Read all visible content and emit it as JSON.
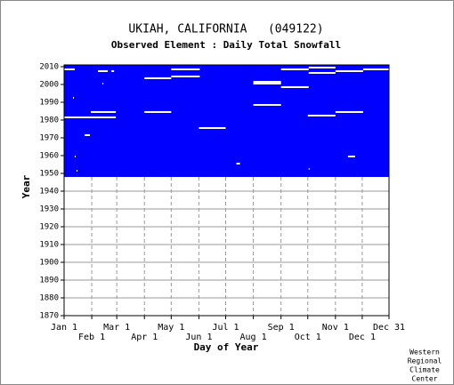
{
  "chart_data": {
    "type": "coverage",
    "title": "UKIAH, CALIFORNIA   (049122)",
    "subtitle": "Observed Element : Daily Total Snowfall",
    "xlabel": "Day of Year",
    "ylabel": "Year",
    "color": "#0000ff",
    "record": {
      "first_year": 1948,
      "last_year": 2010
    },
    "missing": [
      {
        "year": 2008,
        "start_day": 1,
        "end_day": 13
      },
      {
        "year": 2007,
        "start_day": 39,
        "end_day": 50
      },
      {
        "year": 2007,
        "start_day": 54,
        "end_day": 57
      },
      {
        "year": 2000,
        "start_day": 44,
        "end_day": 45
      },
      {
        "year": 1992,
        "start_day": 11,
        "end_day": 12
      },
      {
        "year": 1981,
        "start_day": 1,
        "end_day": 59
      },
      {
        "year": 1984,
        "start_day": 31,
        "end_day": 59
      },
      {
        "year": 1971,
        "start_day": 24,
        "end_day": 30
      },
      {
        "year": 1959,
        "start_day": 13,
        "end_day": 14
      },
      {
        "year": 1951,
        "start_day": 15,
        "end_day": 16
      },
      {
        "year": 2003,
        "start_day": 91,
        "end_day": 121
      },
      {
        "year": 2004,
        "start_day": 121,
        "end_day": 153
      },
      {
        "year": 2008,
        "start_day": 121,
        "end_day": 153
      },
      {
        "year": 1984,
        "start_day": 91,
        "end_day": 121
      },
      {
        "year": 1975,
        "start_day": 152,
        "end_day": 182
      },
      {
        "year": 1955,
        "start_day": 194,
        "end_day": 198
      },
      {
        "year": 2001,
        "start_day": 213,
        "end_day": 244
      },
      {
        "year": 2000,
        "start_day": 213,
        "end_day": 244
      },
      {
        "year": 1988,
        "start_day": 213,
        "end_day": 244
      },
      {
        "year": 1998,
        "start_day": 244,
        "end_day": 275
      },
      {
        "year": 2008,
        "start_day": 244,
        "end_day": 275
      },
      {
        "year": 2009,
        "start_day": 275,
        "end_day": 305
      },
      {
        "year": 2006,
        "start_day": 275,
        "end_day": 305
      },
      {
        "year": 2007,
        "start_day": 305,
        "end_day": 336
      },
      {
        "year": 2008,
        "start_day": 336,
        "end_day": 365
      },
      {
        "year": 1982,
        "start_day": 274,
        "end_day": 305
      },
      {
        "year": 1984,
        "start_day": 305,
        "end_day": 336
      },
      {
        "year": 1959,
        "start_day": 319,
        "end_day": 327
      },
      {
        "year": 1952,
        "start_day": 275,
        "end_day": 276
      }
    ],
    "xlim": [
      1,
      365
    ],
    "xticks": [
      {
        "value": 1,
        "label": "Jan 1"
      },
      {
        "value": 32,
        "label": "Feb 1"
      },
      {
        "value": 60,
        "label": "Mar 1"
      },
      {
        "value": 91,
        "label": "Apr 1"
      },
      {
        "value": 121,
        "label": "May 1"
      },
      {
        "value": 152,
        "label": "Jun 1"
      },
      {
        "value": 182,
        "label": "Jul 1"
      },
      {
        "value": 213,
        "label": "Aug 1"
      },
      {
        "value": 244,
        "label": "Sep 1"
      },
      {
        "value": 274,
        "label": "Oct 1"
      },
      {
        "value": 305,
        "label": "Nov 1"
      },
      {
        "value": 335,
        "label": "Dec 1"
      },
      {
        "value": 365,
        "label": "Dec 31"
      }
    ],
    "ylim": [
      1870,
      2011
    ],
    "yticks": [
      1870,
      1880,
      1890,
      1900,
      1910,
      1920,
      1930,
      1940,
      1950,
      1960,
      1970,
      1980,
      1990,
      2000,
      2010
    ],
    "grid": true,
    "credit": [
      "Western",
      "Regional",
      "Climate",
      "Center"
    ]
  }
}
